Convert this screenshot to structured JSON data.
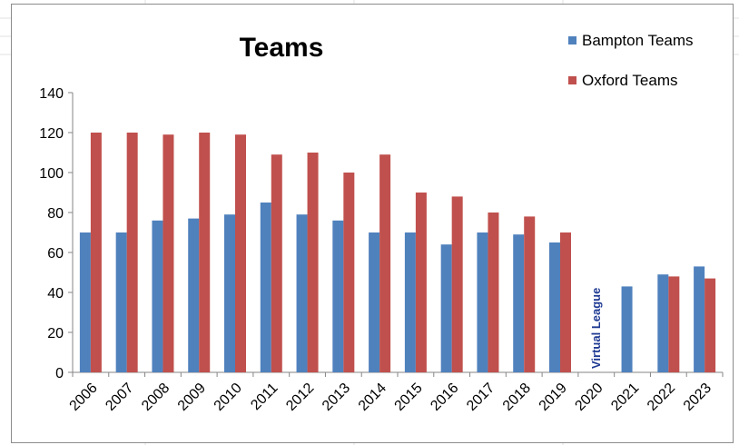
{
  "chart_data": {
    "type": "bar",
    "title": "Teams",
    "xlabel": "",
    "ylabel": "",
    "ylim": [
      0,
      140
    ],
    "yticks": [
      "0",
      "20",
      "40",
      "60",
      "80",
      "100",
      "120",
      "140"
    ],
    "categories": [
      "2006",
      "2007",
      "2008",
      "2009",
      "2010",
      "2011",
      "2012",
      "2013",
      "2014",
      "2015",
      "2016",
      "2017",
      "2018",
      "2019",
      "2020",
      "2021",
      "2022",
      "2023"
    ],
    "series": [
      {
        "name": "Bampton Teams",
        "color": "#4f81bd",
        "values": [
          70,
          70,
          76,
          77,
          79,
          85,
          79,
          76,
          70,
          70,
          64,
          70,
          69,
          65,
          null,
          43,
          49,
          53
        ]
      },
      {
        "name": "Oxford Teams",
        "color": "#c0504d",
        "values": [
          120,
          120,
          119,
          120,
          119,
          109,
          110,
          100,
          109,
          90,
          88,
          80,
          78,
          70,
          null,
          null,
          48,
          47
        ]
      }
    ],
    "annotations": [
      {
        "text": "Virtual League",
        "category": "2020",
        "color": "#1f3a93"
      }
    ],
    "legend_position": "top-right",
    "grid": false
  }
}
